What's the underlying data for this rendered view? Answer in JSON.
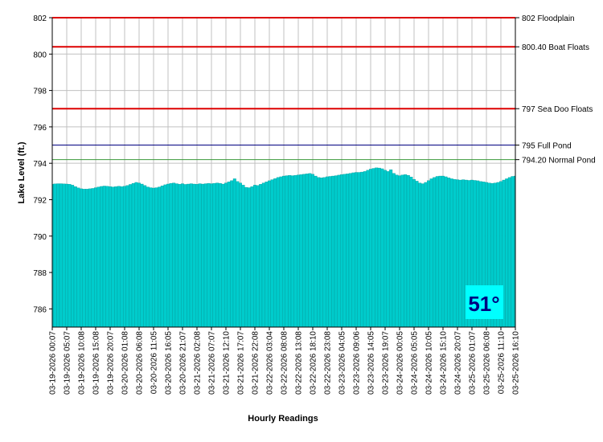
{
  "chart_data": {
    "type": "area",
    "y_label": "Lake Level (ft.)",
    "x_label": "Hourly Readings",
    "categories": [
      "03-19-2026 00:07",
      null,
      null,
      null,
      null,
      "03-19-2026 05:07",
      null,
      null,
      null,
      null,
      "03-19-2026 10:08",
      null,
      null,
      null,
      null,
      "03-19-2026 15:08",
      null,
      null,
      null,
      null,
      "03-19-2026 20:07",
      null,
      null,
      null,
      null,
      "03-20-2026 01:08",
      null,
      null,
      null,
      null,
      "03-20-2026 06:08",
      null,
      null,
      null,
      null,
      "03-20-2026 11:05",
      null,
      null,
      null,
      null,
      "03-20-2026 16:05",
      null,
      null,
      null,
      null,
      "03-20-2026 21:07",
      null,
      null,
      null,
      null,
      "03-21-2026 02:08",
      null,
      null,
      null,
      null,
      "03-21-2026 07:07",
      null,
      null,
      null,
      null,
      "03-21-2026 12:10",
      null,
      null,
      null,
      null,
      "03-21-2026 17:07",
      null,
      null,
      null,
      null,
      "03-21-2026 22:08",
      null,
      null,
      null,
      null,
      "03-22-2026 03:04",
      null,
      null,
      null,
      null,
      "03-22-2026 08:08",
      null,
      null,
      null,
      null,
      "03-22-2026 13:08",
      null,
      null,
      null,
      null,
      "03-22-2026 18:10",
      null,
      null,
      null,
      null,
      "03-22-2026 23:08",
      null,
      null,
      null,
      null,
      "03-23-2026 04:05",
      null,
      null,
      null,
      null,
      "03-23-2026 09:06",
      null,
      null,
      null,
      null,
      "03-23-2026 14:05",
      null,
      null,
      null,
      null,
      "03-23-2026 19:07",
      null,
      null,
      null,
      null,
      "03-24-2026 00:05",
      null,
      null,
      null,
      null,
      "03-24-2026 05:05",
      null,
      null,
      null,
      null,
      "03-24-2026 10:05",
      null,
      null,
      null,
      null,
      "03-24-2026 15:10",
      null,
      null,
      null,
      null,
      "03-24-2026 20:07",
      null,
      null,
      null,
      null,
      "03-25-2026 01:07",
      null,
      null,
      null,
      null,
      "03-25-2026 06:08",
      null,
      null,
      null,
      null,
      "03-25-2026 11:10",
      null,
      null,
      null,
      null,
      "03-25-2026 16:10"
    ],
    "values": [
      792.85,
      792.87,
      792.88,
      792.88,
      792.87,
      792.86,
      792.85,
      792.8,
      792.72,
      792.65,
      792.6,
      792.58,
      792.58,
      792.6,
      792.62,
      792.66,
      792.7,
      792.73,
      792.75,
      792.74,
      792.72,
      792.7,
      792.72,
      792.74,
      792.72,
      792.74,
      792.78,
      792.84,
      792.9,
      792.95,
      792.92,
      792.86,
      792.78,
      792.7,
      792.66,
      792.64,
      792.66,
      792.7,
      792.76,
      792.82,
      792.86,
      792.9,
      792.92,
      792.88,
      792.85,
      792.88,
      792.84,
      792.86,
      792.88,
      792.86,
      792.85,
      792.88,
      792.86,
      792.88,
      792.9,
      792.88,
      792.9,
      792.92,
      792.9,
      792.86,
      792.92,
      792.98,
      793.05,
      793.15,
      793.0,
      792.92,
      792.8,
      792.68,
      792.66,
      792.72,
      792.8,
      792.78,
      792.85,
      792.92,
      792.98,
      793.04,
      793.1,
      793.16,
      793.22,
      793.26,
      793.3,
      793.32,
      793.34,
      793.32,
      793.34,
      793.36,
      793.38,
      793.4,
      793.42,
      793.44,
      793.4,
      793.3,
      793.22,
      793.2,
      793.22,
      793.26,
      793.28,
      793.3,
      793.32,
      793.35,
      793.38,
      793.4,
      793.42,
      793.45,
      793.48,
      793.5,
      793.5,
      793.52,
      793.55,
      793.62,
      793.68,
      793.72,
      793.75,
      793.74,
      793.7,
      793.62,
      793.55,
      793.65,
      793.45,
      793.36,
      793.32,
      793.36,
      793.38,
      793.34,
      793.25,
      793.12,
      793.02,
      792.92,
      792.88,
      792.95,
      793.05,
      793.15,
      793.22,
      793.28,
      793.3,
      793.3,
      793.26,
      793.2,
      793.15,
      793.12,
      793.1,
      793.08,
      793.1,
      793.08,
      793.06,
      793.08,
      793.06,
      793.04,
      793.0,
      792.98,
      792.95,
      792.92,
      792.9,
      792.92,
      792.95,
      793.0,
      793.08,
      793.15,
      793.22,
      793.28,
      793.3
    ],
    "color": "#00cccc",
    "ylim": [
      785,
      802
    ],
    "yticks": [
      786,
      788,
      790,
      792,
      794,
      796,
      798,
      800,
      802
    ],
    "grid": true,
    "reference_lines": [
      {
        "value": 802,
        "label": "802 Floodplain",
        "color": "#dd0000"
      },
      {
        "value": 800.4,
        "label": "800.40 Boat Floats",
        "color": "#dd0000"
      },
      {
        "value": 797,
        "label": "797 Sea Doo Floats",
        "color": "#dd0000"
      },
      {
        "value": 795,
        "label": "795 Full Pond",
        "color": "#000080"
      },
      {
        "value": 794.2,
        "label": "794.20 Normal Pond",
        "color": "#3a9a3a"
      }
    ],
    "badge": "51°"
  }
}
